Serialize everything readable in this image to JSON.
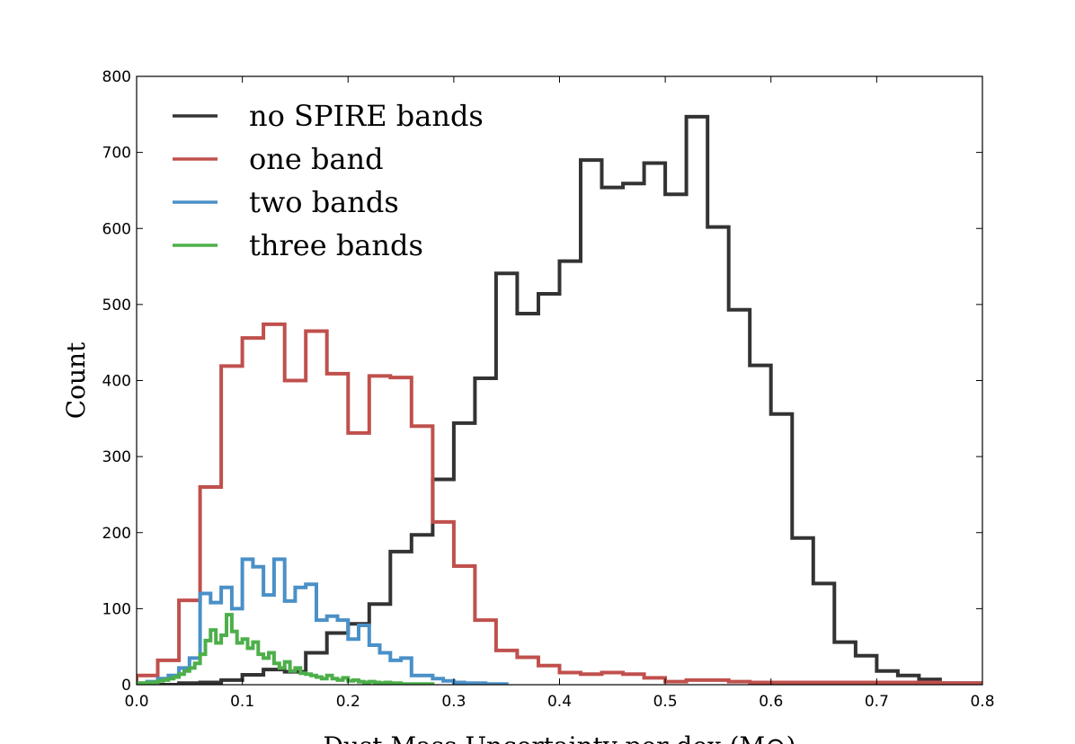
{
  "chart_data": {
    "type": "histogram-step",
    "xlabel": "Dust Mass Uncertainty per dex (M⊙)",
    "ylabel": "Count",
    "xlim": [
      0.0,
      0.8
    ],
    "ylim": [
      0,
      800
    ],
    "xticks": [
      0.0,
      0.1,
      0.2,
      0.3,
      0.4,
      0.5,
      0.6,
      0.7,
      0.8
    ],
    "xtick_labels": [
      "0.0",
      "0.1",
      "0.2",
      "0.3",
      "0.4",
      "0.5",
      "0.6",
      "0.7",
      "0.8"
    ],
    "yticks": [
      0,
      100,
      200,
      300,
      400,
      500,
      600,
      700,
      800
    ],
    "ytick_labels": [
      "0",
      "100",
      "200",
      "300",
      "400",
      "500",
      "600",
      "700",
      "800"
    ],
    "legend_position": "top-left",
    "series": [
      {
        "name": "no SPIRE bands",
        "color": "#333333",
        "edges": [
          0.0,
          0.02,
          0.04,
          0.06,
          0.08,
          0.1,
          0.12,
          0.14,
          0.16,
          0.18,
          0.2,
          0.22,
          0.24,
          0.26,
          0.28,
          0.3,
          0.32,
          0.34,
          0.36,
          0.38,
          0.4,
          0.42,
          0.44,
          0.46,
          0.48,
          0.5,
          0.52,
          0.54,
          0.56,
          0.58,
          0.6,
          0.62,
          0.64,
          0.66,
          0.68,
          0.7,
          0.72,
          0.74,
          0.76,
          0.78,
          0.8
        ],
        "counts": [
          0,
          0,
          2,
          3,
          6,
          13,
          20,
          17,
          42,
          68,
          80,
          106,
          175,
          197,
          270,
          344,
          403,
          541,
          488,
          514,
          557,
          690,
          654,
          659,
          686,
          645,
          747,
          602,
          493,
          420,
          356,
          193,
          133,
          56,
          38,
          18,
          12,
          7,
          2,
          2
        ]
      },
      {
        "name": "one band",
        "color": "#c0504d",
        "edges": [
          0.0,
          0.02,
          0.04,
          0.06,
          0.08,
          0.1,
          0.12,
          0.14,
          0.16,
          0.18,
          0.2,
          0.22,
          0.24,
          0.26,
          0.28,
          0.3,
          0.32,
          0.34,
          0.36,
          0.38,
          0.4,
          0.42,
          0.44,
          0.46,
          0.48,
          0.5,
          0.52,
          0.54,
          0.56,
          0.58,
          0.6,
          0.62,
          0.64,
          0.66,
          0.68,
          0.7,
          0.72,
          0.74,
          0.76,
          0.78,
          0.8
        ],
        "counts": [
          12,
          32,
          111,
          260,
          419,
          456,
          474,
          400,
          465,
          409,
          331,
          406,
          404,
          340,
          214,
          156,
          85,
          45,
          36,
          25,
          16,
          14,
          16,
          14,
          9,
          4,
          6,
          6,
          4,
          3,
          3,
          3,
          3,
          3,
          3,
          3,
          3,
          3,
          2,
          2
        ]
      },
      {
        "name": "two bands",
        "color": "#4a90c8",
        "edges": [
          0.0,
          0.01,
          0.02,
          0.03,
          0.04,
          0.05,
          0.06,
          0.07,
          0.08,
          0.09,
          0.1,
          0.11,
          0.12,
          0.13,
          0.14,
          0.15,
          0.16,
          0.17,
          0.18,
          0.19,
          0.2,
          0.21,
          0.22,
          0.23,
          0.24,
          0.25,
          0.26,
          0.27,
          0.28,
          0.29,
          0.3,
          0.31,
          0.32,
          0.33,
          0.34,
          0.35
        ],
        "counts": [
          2,
          4,
          8,
          12,
          22,
          35,
          120,
          108,
          128,
          100,
          165,
          155,
          118,
          165,
          110,
          128,
          132,
          85,
          90,
          85,
          60,
          78,
          52,
          42,
          32,
          35,
          12,
          12,
          8,
          5,
          3,
          2,
          2,
          1,
          1
        ]
      },
      {
        "name": "three bands",
        "color": "#4daf4a",
        "edges": [
          0.0,
          0.005,
          0.01,
          0.015,
          0.02,
          0.025,
          0.03,
          0.035,
          0.04,
          0.045,
          0.05,
          0.055,
          0.06,
          0.065,
          0.07,
          0.075,
          0.08,
          0.085,
          0.09,
          0.095,
          0.1,
          0.105,
          0.11,
          0.115,
          0.12,
          0.125,
          0.13,
          0.135,
          0.14,
          0.145,
          0.15,
          0.155,
          0.16,
          0.165,
          0.17,
          0.175,
          0.18,
          0.185,
          0.19,
          0.195,
          0.2,
          0.205,
          0.21,
          0.215,
          0.22,
          0.225,
          0.23,
          0.235,
          0.24,
          0.245,
          0.25,
          0.255,
          0.26,
          0.265,
          0.27,
          0.275,
          0.28
        ],
        "counts": [
          2,
          2,
          3,
          3,
          5,
          6,
          8,
          10,
          14,
          18,
          22,
          28,
          40,
          58,
          72,
          55,
          65,
          92,
          70,
          55,
          60,
          48,
          56,
          40,
          35,
          42,
          28,
          22,
          30,
          18,
          22,
          15,
          14,
          12,
          10,
          8,
          12,
          8,
          6,
          9,
          5,
          6,
          4,
          3,
          4,
          3,
          2,
          3,
          2,
          2,
          1,
          1,
          1,
          1,
          1,
          1
        ]
      }
    ]
  }
}
